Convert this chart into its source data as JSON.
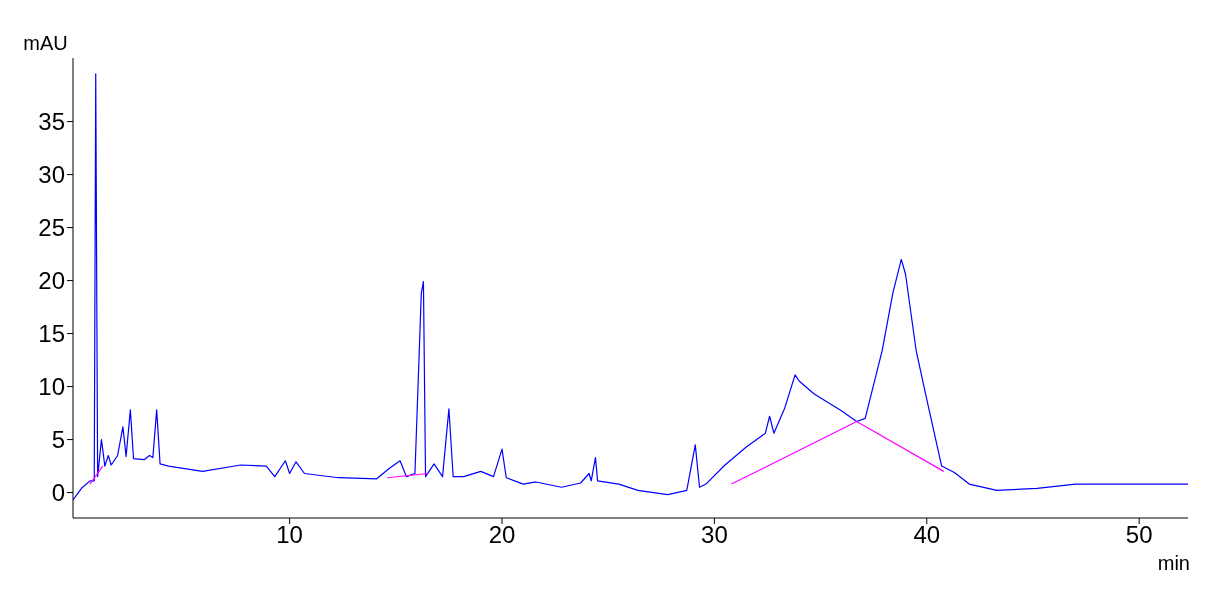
{
  "chart_data": {
    "type": "line",
    "xlabel": "min",
    "ylabel": "mAU",
    "xlim": [
      -0.2,
      52.3
    ],
    "ylim": [
      -2.4,
      41
    ],
    "xticks": [
      10,
      20,
      30,
      40,
      50
    ],
    "yticks": [
      0,
      5,
      10,
      15,
      20,
      25,
      30,
      35
    ],
    "marker": "none",
    "line_style": "solid",
    "series": [
      {
        "color": "#0000ff",
        "x": [
          -0.2,
          0.2,
          0.6,
          0.8,
          0.87,
          0.96,
          1.14,
          1.3,
          1.46,
          1.6,
          1.9,
          2.15,
          2.3,
          2.5,
          2.65,
          3.15,
          3.4,
          3.56,
          3.74,
          3.9,
          4.3,
          5.9,
          7.7,
          8.9,
          9.3,
          9.8,
          10.0,
          10.3,
          10.7,
          12.3,
          14.1,
          14.7,
          15.2,
          15.5,
          15.9,
          16.2,
          16.3,
          16.4,
          16.8,
          17.2,
          17.5,
          17.7,
          18.2,
          19.0,
          19.6,
          20.0,
          20.2,
          21.0,
          21.6,
          22.8,
          23.7,
          24.1,
          24.2,
          24.4,
          24.5,
          25.5,
          26.4,
          27.8,
          28.7,
          29.1,
          29.3,
          29.6,
          30.5,
          31.5,
          32.4,
          32.6,
          32.8,
          33.3,
          33.8,
          34.0,
          34.7,
          36.0,
          36.7,
          37.1,
          37.9,
          38.4,
          38.8,
          39.0,
          39.5,
          40.0,
          40.7,
          41.3,
          42.0,
          43.3,
          45.2,
          47.0,
          52.3
        ],
        "values": [
          -0.7,
          0.4,
          1.1,
          1.1,
          39.5,
          1.5,
          5.0,
          2.5,
          3.5,
          2.6,
          3.5,
          6.2,
          3.4,
          7.8,
          3.2,
          3.1,
          3.5,
          3.3,
          7.8,
          2.7,
          2.5,
          2.0,
          2.6,
          2.5,
          1.5,
          3.0,
          1.8,
          2.9,
          1.8,
          1.4,
          1.3,
          2.3,
          3.0,
          1.5,
          1.8,
          18.8,
          19.9,
          1.5,
          2.7,
          1.5,
          7.9,
          1.5,
          1.5,
          2.0,
          1.5,
          4.1,
          1.4,
          0.8,
          1.0,
          0.5,
          0.9,
          1.8,
          1.1,
          3.3,
          1.1,
          0.8,
          0.2,
          -0.2,
          0.2,
          4.5,
          0.5,
          0.8,
          2.6,
          4.3,
          5.6,
          7.2,
          5.6,
          7.9,
          11.1,
          10.5,
          9.3,
          7.7,
          6.7,
          7.0,
          13.4,
          18.8,
          22.0,
          20.6,
          13.4,
          8.8,
          2.5,
          1.9,
          0.8,
          0.2,
          0.4,
          0.8,
          0.8
        ]
      },
      {
        "color": "#ff00ff",
        "x": [
          0.6,
          1.2
        ],
        "values": [
          0.8,
          2.5
        ]
      },
      {
        "color": "#ff00ff",
        "x": [
          14.6,
          16.5
        ],
        "values": [
          1.4,
          1.8
        ]
      },
      {
        "color": "#ff00ff",
        "x": [
          30.8,
          36.7,
          40.8
        ],
        "values": [
          0.8,
          6.7,
          2.0
        ]
      }
    ]
  }
}
